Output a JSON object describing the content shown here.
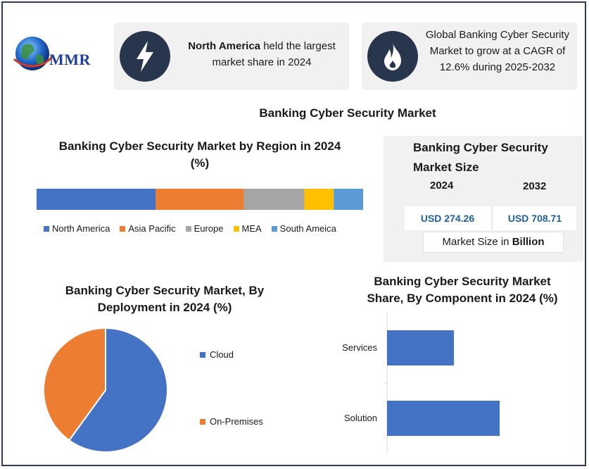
{
  "logo": {
    "text": "MMR"
  },
  "highlights": [
    {
      "icon": "lightning-icon",
      "bold": "North America",
      "text": " held the largest market share in 2024"
    },
    {
      "icon": "flame-icon",
      "text": "Global Banking Cyber Security Market to grow at a CAGR of 12.6% during 2025-2032"
    }
  ],
  "main_title": "Banking Cyber Security Market",
  "market_size": {
    "title": "Banking Cyber Security Market Size",
    "year_start": "2024",
    "year_end": "2032",
    "value_start": "USD 274.26",
    "value_end": "USD 708.71",
    "note_prefix": "Market Size in ",
    "note_bold": "Billion"
  },
  "colors": {
    "north_america": "#4472c4",
    "asia_pacific": "#ed7d31",
    "europe": "#a5a5a5",
    "mea": "#ffc000",
    "south_america": "#5b9bd5",
    "cloud": "#4472c4",
    "on_premises": "#ed7d31",
    "bars": "#4472c4",
    "badge": "#27364d"
  },
  "chart_data": [
    {
      "type": "bar",
      "orientation": "horizontal-stacked",
      "title": "Banking Cyber Security Market by Region in 2024 (%)",
      "series": [
        {
          "name": "North America",
          "values": [
            36.5
          ]
        },
        {
          "name": "Asia Pacific",
          "values": [
            27
          ]
        },
        {
          "name": "Europe",
          "values": [
            18.5
          ]
        },
        {
          "name": "MEA",
          "values": [
            9
          ]
        },
        {
          "name": "South Ameica",
          "values": [
            9
          ]
        }
      ],
      "legend": "bottom"
    },
    {
      "type": "pie",
      "title": "Banking Cyber Security Market, By Deployment in 2024 (%)",
      "categories": [
        "Cloud",
        "On-Premises"
      ],
      "values": [
        60,
        40
      ],
      "legend": "right"
    },
    {
      "type": "bar",
      "orientation": "horizontal",
      "title": "Banking Cyber Security Market Share, By Component in 2024 (%)",
      "categories": [
        "Services",
        "Solution"
      ],
      "values": [
        38,
        64
      ],
      "xlim": [
        0,
        100
      ]
    }
  ]
}
